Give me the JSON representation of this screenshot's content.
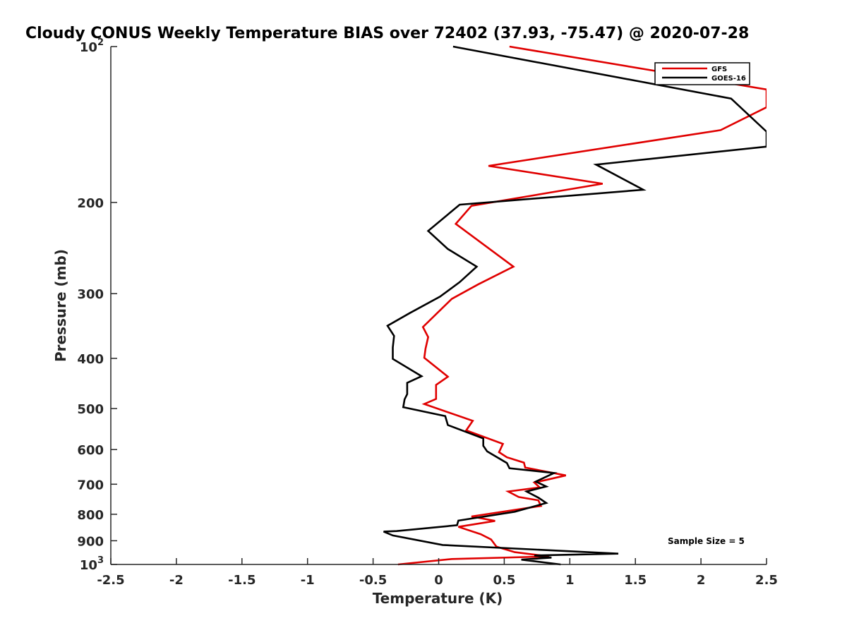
{
  "chart_data": {
    "type": "line",
    "title": "Cloudy CONUS Weekly Temperature BIAS over 72402 (37.93, -75.47) @ 2020-07-28",
    "xlabel": "Temperature (K)",
    "ylabel": "Pressure (mb)",
    "xlim": [
      -2.5,
      2.5
    ],
    "ylim": [
      100,
      1000
    ],
    "y_scale": "log",
    "y_reversed": true,
    "grid": false,
    "legend_position": "top-right",
    "x_ticks": [
      {
        "value": -2.5,
        "label": "-2.5"
      },
      {
        "value": -2,
        "label": "-2"
      },
      {
        "value": -1.5,
        "label": "-1.5"
      },
      {
        "value": -1,
        "label": "-1"
      },
      {
        "value": -0.5,
        "label": "-0.5"
      },
      {
        "value": 0,
        "label": "0"
      },
      {
        "value": 0.5,
        "label": "0.5"
      },
      {
        "value": 1,
        "label": "1"
      },
      {
        "value": 1.5,
        "label": "1.5"
      },
      {
        "value": 2,
        "label": "2"
      },
      {
        "value": 2.5,
        "label": "2.5"
      }
    ],
    "y_ticks": [
      {
        "value": 100,
        "base": "10",
        "exp": "2"
      },
      {
        "value": 200,
        "label": "200"
      },
      {
        "value": 300,
        "label": "300"
      },
      {
        "value": 400,
        "label": "400"
      },
      {
        "value": 500,
        "label": "500"
      },
      {
        "value": 600,
        "label": "600"
      },
      {
        "value": 700,
        "label": "700"
      },
      {
        "value": 800,
        "label": "800"
      },
      {
        "value": 900,
        "label": "900"
      },
      {
        "value": 1000,
        "base": "10",
        "exp": "3"
      }
    ],
    "series": [
      {
        "name": "GFS",
        "color": "#e00000",
        "points": [
          [
            0.54,
            100
          ],
          [
            2.5,
            121
          ],
          [
            2.5,
            131
          ],
          [
            2.15,
            145
          ],
          [
            0.38,
            170
          ],
          [
            1.25,
            184
          ],
          [
            0.25,
            203
          ],
          [
            0.13,
            220
          ],
          [
            0.57,
            266
          ],
          [
            0.3,
            288
          ],
          [
            0.1,
            307
          ],
          [
            0.0,
            325
          ],
          [
            -0.12,
            348
          ],
          [
            -0.08,
            364
          ],
          [
            -0.1,
            383
          ],
          [
            -0.11,
            399
          ],
          [
            0.07,
            434
          ],
          [
            -0.02,
            450
          ],
          [
            -0.02,
            479
          ],
          [
            -0.11,
            490
          ],
          [
            0.26,
            528
          ],
          [
            0.21,
            551
          ],
          [
            0.49,
            585
          ],
          [
            0.46,
            607
          ],
          [
            0.52,
            621
          ],
          [
            0.65,
            636
          ],
          [
            0.66,
            650
          ],
          [
            0.97,
            673
          ],
          [
            0.73,
            695
          ],
          [
            0.77,
            710
          ],
          [
            0.53,
            723
          ],
          [
            0.61,
            741
          ],
          [
            0.76,
            752
          ],
          [
            0.78,
            771
          ],
          [
            0.25,
            808
          ],
          [
            0.43,
            824
          ],
          [
            0.15,
            846
          ],
          [
            0.32,
            874
          ],
          [
            0.4,
            895
          ],
          [
            0.44,
            924
          ],
          [
            0.58,
            947
          ],
          [
            0.84,
            965
          ],
          [
            0.1,
            976
          ],
          [
            -0.31,
            1000
          ]
        ]
      },
      {
        "name": "GOES-16",
        "color": "#000000",
        "points": [
          [
            0.11,
            100
          ],
          [
            2.23,
            126
          ],
          [
            2.5,
            146
          ],
          [
            2.5,
            156
          ],
          [
            1.2,
            169
          ],
          [
            1.56,
            189
          ],
          [
            0.16,
            202
          ],
          [
            -0.08,
            227
          ],
          [
            0.07,
            246
          ],
          [
            0.29,
            266
          ],
          [
            0.16,
            285
          ],
          [
            0.01,
            304
          ],
          [
            -0.22,
            327
          ],
          [
            -0.39,
            346
          ],
          [
            -0.34,
            362
          ],
          [
            -0.35,
            381
          ],
          [
            -0.35,
            401
          ],
          [
            -0.13,
            433
          ],
          [
            -0.24,
            446
          ],
          [
            -0.24,
            469
          ],
          [
            -0.26,
            480
          ],
          [
            -0.27,
            497
          ],
          [
            0.05,
            517
          ],
          [
            0.07,
            538
          ],
          [
            0.34,
            571
          ],
          [
            0.34,
            590
          ],
          [
            0.37,
            605
          ],
          [
            0.52,
            637
          ],
          [
            0.54,
            652
          ],
          [
            0.88,
            666
          ],
          [
            0.74,
            692
          ],
          [
            0.82,
            707
          ],
          [
            0.67,
            723
          ],
          [
            0.76,
            743
          ],
          [
            0.82,
            761
          ],
          [
            0.58,
            791
          ],
          [
            0.15,
            823
          ],
          [
            0.14,
            840
          ],
          [
            -0.32,
            862
          ],
          [
            -0.42,
            864
          ],
          [
            -0.35,
            879
          ],
          [
            0.03,
            917
          ],
          [
            1.37,
            953
          ],
          [
            0.73,
            961
          ],
          [
            0.86,
            970
          ],
          [
            0.63,
            979
          ],
          [
            0.93,
            1000
          ]
        ]
      }
    ],
    "annotation": "Sample Size = 5"
  }
}
